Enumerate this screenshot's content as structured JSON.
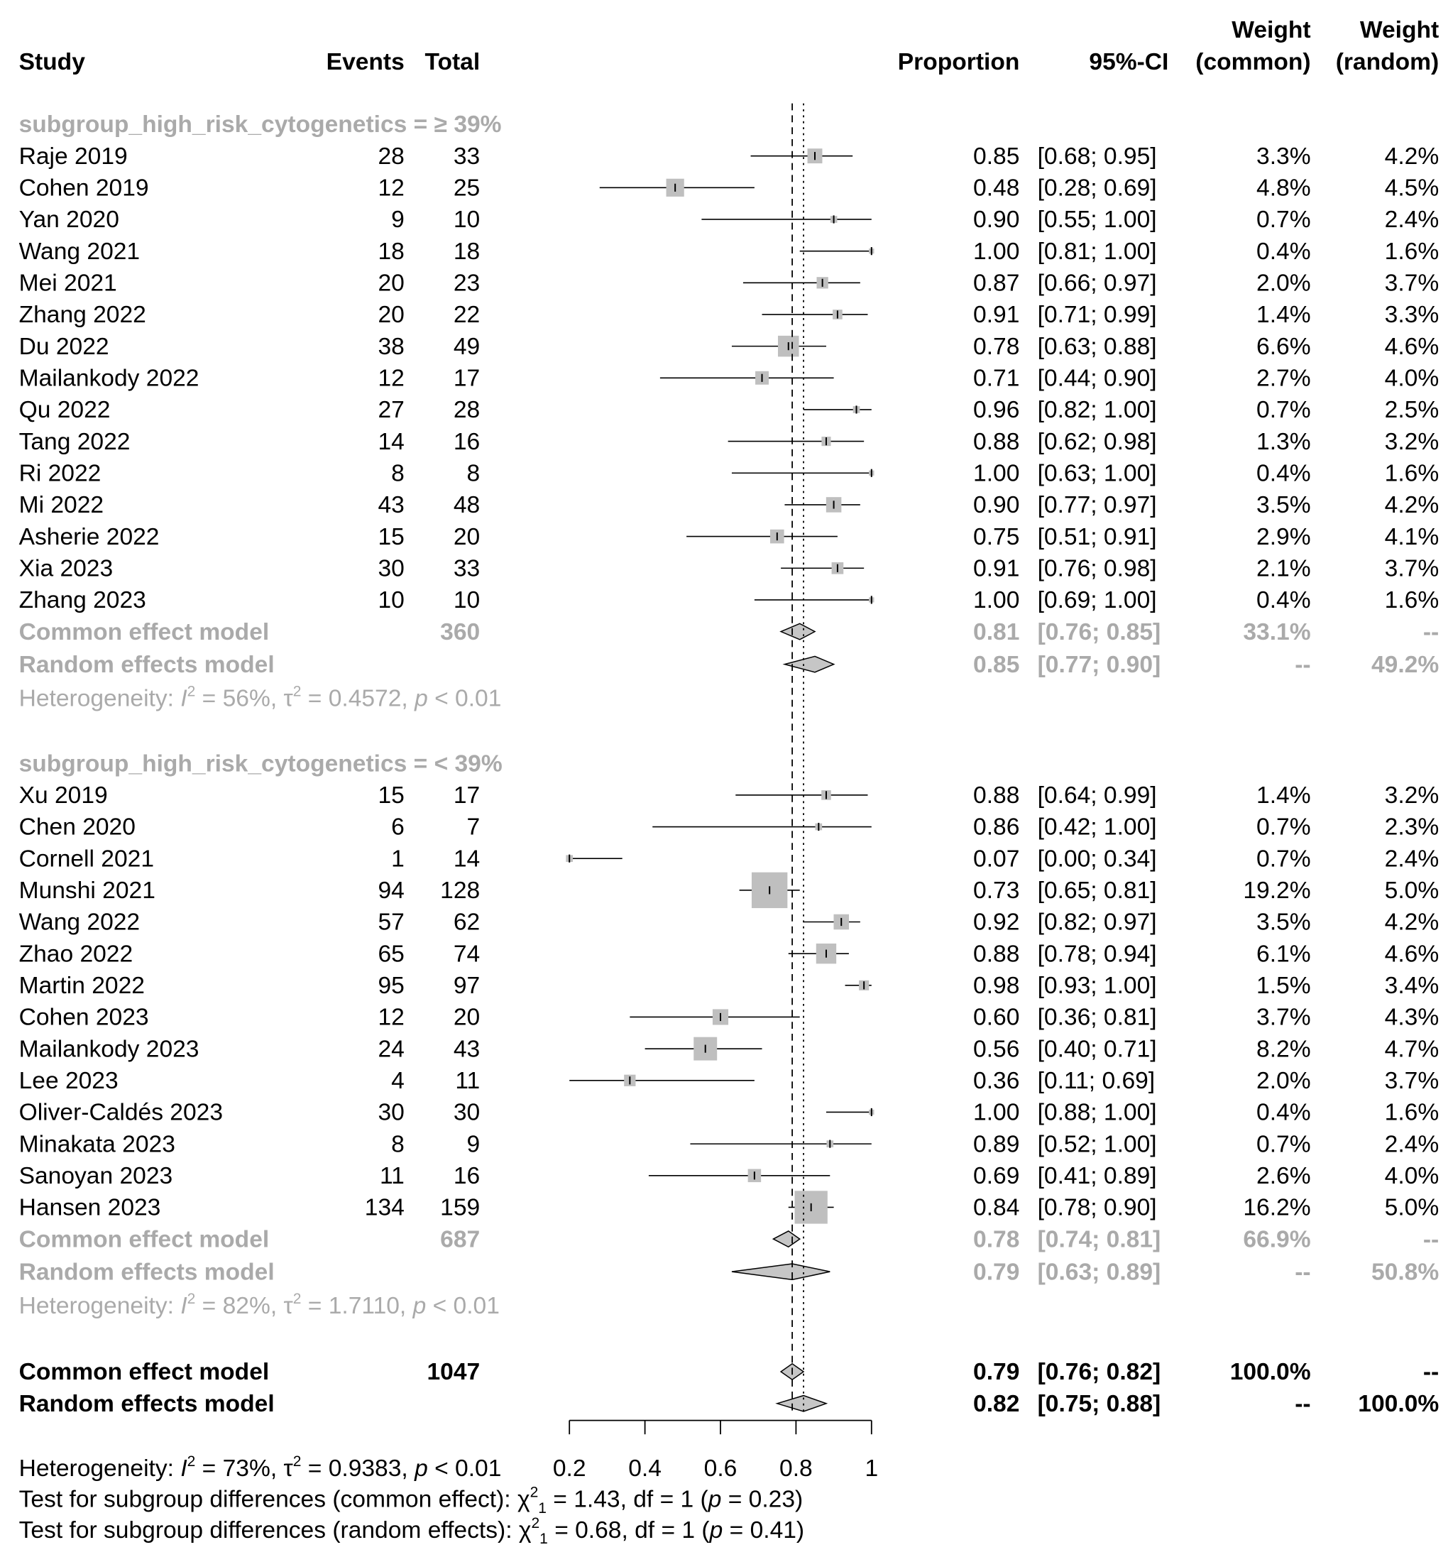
{
  "headers": {
    "study": "Study",
    "events": "Events",
    "total": "Total",
    "proportion": "Proportion",
    "ci": "95%-CI",
    "weight_common": [
      "Weight",
      "(common)"
    ],
    "weight_random": [
      "Weight",
      "(random)"
    ]
  },
  "colors": {
    "text": "#000000",
    "gray_text": "#aaaaaa",
    "box": "#bfbfbf",
    "diamond": "#c6c6c6",
    "line": "#000000"
  },
  "chart_data": {
    "type": "forest",
    "xlabel": "",
    "xlim": [
      0.2,
      1
    ],
    "ticks": [
      0.2,
      0.4,
      0.6,
      0.8,
      1
    ],
    "tick_labels": [
      "0.2",
      "0.4",
      "0.6",
      "0.8",
      "1"
    ],
    "reference_lines": [
      {
        "name": "common-effect-line",
        "value": 0.79,
        "style": "dashed"
      },
      {
        "name": "random-effects-line",
        "value": 0.82,
        "style": "dotted"
      }
    ],
    "subgroups": [
      {
        "label": "subgroup_high_risk_cytogenetics = ≥ 39%",
        "studies": [
          {
            "study": "Raje 2019",
            "events": "28",
            "total": "33",
            "prop": 0.85,
            "lo": 0.68,
            "hi": 0.95,
            "prop_text": "0.85",
            "ci_text": "[0.68; 0.95]",
            "w_common": "3.3%",
            "w_random": "4.2%",
            "wc": 3.3
          },
          {
            "study": "Cohen 2019",
            "events": "12",
            "total": "25",
            "prop": 0.48,
            "lo": 0.28,
            "hi": 0.69,
            "prop_text": "0.48",
            "ci_text": "[0.28; 0.69]",
            "w_common": "4.8%",
            "w_random": "4.5%",
            "wc": 4.8
          },
          {
            "study": "Yan 2020",
            "events": "9",
            "total": "10",
            "prop": 0.9,
            "lo": 0.55,
            "hi": 1.0,
            "prop_text": "0.90",
            "ci_text": "[0.55; 1.00]",
            "w_common": "0.7%",
            "w_random": "2.4%",
            "wc": 0.7
          },
          {
            "study": "Wang 2021",
            "events": "18",
            "total": "18",
            "prop": 1.0,
            "lo": 0.81,
            "hi": 1.0,
            "prop_text": "1.00",
            "ci_text": "[0.81; 1.00]",
            "w_common": "0.4%",
            "w_random": "1.6%",
            "wc": 0.4
          },
          {
            "study": "Mei 2021",
            "events": "20",
            "total": "23",
            "prop": 0.87,
            "lo": 0.66,
            "hi": 0.97,
            "prop_text": "0.87",
            "ci_text": "[0.66; 0.97]",
            "w_common": "2.0%",
            "w_random": "3.7%",
            "wc": 2.0
          },
          {
            "study": "Zhang 2022",
            "events": "20",
            "total": "22",
            "prop": 0.91,
            "lo": 0.71,
            "hi": 0.99,
            "prop_text": "0.91",
            "ci_text": "[0.71; 0.99]",
            "w_common": "1.4%",
            "w_random": "3.3%",
            "wc": 1.4
          },
          {
            "study": "Du 2022",
            "events": "38",
            "total": "49",
            "prop": 0.78,
            "lo": 0.63,
            "hi": 0.88,
            "prop_text": "0.78",
            "ci_text": "[0.63; 0.88]",
            "w_common": "6.6%",
            "w_random": "4.6%",
            "wc": 6.6
          },
          {
            "study": "Mailankody 2022",
            "events": "12",
            "total": "17",
            "prop": 0.71,
            "lo": 0.44,
            "hi": 0.9,
            "prop_text": "0.71",
            "ci_text": "[0.44; 0.90]",
            "w_common": "2.7%",
            "w_random": "4.0%",
            "wc": 2.7
          },
          {
            "study": "Qu 2022",
            "events": "27",
            "total": "28",
            "prop": 0.96,
            "lo": 0.82,
            "hi": 1.0,
            "prop_text": "0.96",
            "ci_text": "[0.82; 1.00]",
            "w_common": "0.7%",
            "w_random": "2.5%",
            "wc": 0.7
          },
          {
            "study": "Tang 2022",
            "events": "14",
            "total": "16",
            "prop": 0.88,
            "lo": 0.62,
            "hi": 0.98,
            "prop_text": "0.88",
            "ci_text": "[0.62; 0.98]",
            "w_common": "1.3%",
            "w_random": "3.2%",
            "wc": 1.3
          },
          {
            "study": "Ri 2022",
            "events": "8",
            "total": "8",
            "prop": 1.0,
            "lo": 0.63,
            "hi": 1.0,
            "prop_text": "1.00",
            "ci_text": "[0.63; 1.00]",
            "w_common": "0.4%",
            "w_random": "1.6%",
            "wc": 0.4
          },
          {
            "study": "Mi 2022",
            "events": "43",
            "total": "48",
            "prop": 0.9,
            "lo": 0.77,
            "hi": 0.97,
            "prop_text": "0.90",
            "ci_text": "[0.77; 0.97]",
            "w_common": "3.5%",
            "w_random": "4.2%",
            "wc": 3.5
          },
          {
            "study": "Asherie 2022",
            "events": "15",
            "total": "20",
            "prop": 0.75,
            "lo": 0.51,
            "hi": 0.91,
            "prop_text": "0.75",
            "ci_text": "[0.51; 0.91]",
            "w_common": "2.9%",
            "w_random": "4.1%",
            "wc": 2.9
          },
          {
            "study": "Xia 2023",
            "events": "30",
            "total": "33",
            "prop": 0.91,
            "lo": 0.76,
            "hi": 0.98,
            "prop_text": "0.91",
            "ci_text": "[0.76; 0.98]",
            "w_common": "2.1%",
            "w_random": "3.7%",
            "wc": 2.1
          },
          {
            "study": "Zhang 2023",
            "events": "10",
            "total": "10",
            "prop": 1.0,
            "lo": 0.69,
            "hi": 1.0,
            "prop_text": "1.00",
            "ci_text": "[0.69; 1.00]",
            "w_common": "0.4%",
            "w_random": "1.6%",
            "wc": 0.4
          }
        ],
        "common": {
          "label": "Common effect model",
          "total": "360",
          "prop": 0.81,
          "lo": 0.76,
          "hi": 0.85,
          "prop_text": "0.81",
          "ci_text": "[0.76; 0.85]",
          "w_common": "33.1%",
          "w_random": "--"
        },
        "random": {
          "label": "Random effects model",
          "prop": 0.85,
          "lo": 0.77,
          "hi": 0.9,
          "prop_text": "0.85",
          "ci_text": "[0.77; 0.90]",
          "w_common": "--",
          "w_random": "49.2%"
        },
        "heterogeneity": {
          "prefix": "Heterogeneity: ",
          "I2": "56%",
          "tau2": "0.4572",
          "p": "< 0.01"
        }
      },
      {
        "label": "subgroup_high_risk_cytogenetics = < 39%",
        "studies": [
          {
            "study": "Xu 2019",
            "events": "15",
            "total": "17",
            "prop": 0.88,
            "lo": 0.64,
            "hi": 0.99,
            "prop_text": "0.88",
            "ci_text": "[0.64; 0.99]",
            "w_common": "1.4%",
            "w_random": "3.2%",
            "wc": 1.4
          },
          {
            "study": "Chen 2020",
            "events": "6",
            "total": "7",
            "prop": 0.86,
            "lo": 0.42,
            "hi": 1.0,
            "prop_text": "0.86",
            "ci_text": "[0.42; 1.00]",
            "w_common": "0.7%",
            "w_random": "2.3%",
            "wc": 0.7
          },
          {
            "study": "Cornell 2021",
            "events": "1",
            "total": "14",
            "prop": 0.07,
            "lo": 0.0,
            "hi": 0.34,
            "prop_text": "0.07",
            "ci_text": "[0.00; 0.34]",
            "w_common": "0.7%",
            "w_random": "2.4%",
            "wc": 0.7
          },
          {
            "study": "Munshi 2021",
            "events": "94",
            "total": "128",
            "prop": 0.73,
            "lo": 0.65,
            "hi": 0.81,
            "prop_text": "0.73",
            "ci_text": "[0.65; 0.81]",
            "w_common": "19.2%",
            "w_random": "5.0%",
            "wc": 19.2
          },
          {
            "study": "Wang 2022",
            "events": "57",
            "total": "62",
            "prop": 0.92,
            "lo": 0.82,
            "hi": 0.97,
            "prop_text": "0.92",
            "ci_text": "[0.82; 0.97]",
            "w_common": "3.5%",
            "w_random": "4.2%",
            "wc": 3.5
          },
          {
            "study": "Zhao 2022",
            "events": "65",
            "total": "74",
            "prop": 0.88,
            "lo": 0.78,
            "hi": 0.94,
            "prop_text": "0.88",
            "ci_text": "[0.78; 0.94]",
            "w_common": "6.1%",
            "w_random": "4.6%",
            "wc": 6.1
          },
          {
            "study": "Martin 2022",
            "events": "95",
            "total": "97",
            "prop": 0.98,
            "lo": 0.93,
            "hi": 1.0,
            "prop_text": "0.98",
            "ci_text": "[0.93; 1.00]",
            "w_common": "1.5%",
            "w_random": "3.4%",
            "wc": 1.5
          },
          {
            "study": "Cohen 2023",
            "events": "12",
            "total": "20",
            "prop": 0.6,
            "lo": 0.36,
            "hi": 0.81,
            "prop_text": "0.60",
            "ci_text": "[0.36; 0.81]",
            "w_common": "3.7%",
            "w_random": "4.3%",
            "wc": 3.7
          },
          {
            "study": "Mailankody 2023",
            "events": "24",
            "total": "43",
            "prop": 0.56,
            "lo": 0.4,
            "hi": 0.71,
            "prop_text": "0.56",
            "ci_text": "[0.40; 0.71]",
            "w_common": "8.2%",
            "w_random": "4.7%",
            "wc": 8.2
          },
          {
            "study": "Lee 2023",
            "events": "4",
            "total": "11",
            "prop": 0.36,
            "lo": 0.11,
            "hi": 0.69,
            "prop_text": "0.36",
            "ci_text": "[0.11; 0.69]",
            "w_common": "2.0%",
            "w_random": "3.7%",
            "wc": 2.0
          },
          {
            "study": "Oliver-Caldés 2023",
            "events": "30",
            "total": "30",
            "prop": 1.0,
            "lo": 0.88,
            "hi": 1.0,
            "prop_text": "1.00",
            "ci_text": "[0.88; 1.00]",
            "w_common": "0.4%",
            "w_random": "1.6%",
            "wc": 0.4
          },
          {
            "study": "Minakata 2023",
            "events": "8",
            "total": "9",
            "prop": 0.89,
            "lo": 0.52,
            "hi": 1.0,
            "prop_text": "0.89",
            "ci_text": "[0.52; 1.00]",
            "w_common": "0.7%",
            "w_random": "2.4%",
            "wc": 0.7
          },
          {
            "study": "Sanoyan 2023",
            "events": "11",
            "total": "16",
            "prop": 0.69,
            "lo": 0.41,
            "hi": 0.89,
            "prop_text": "0.69",
            "ci_text": "[0.41; 0.89]",
            "w_common": "2.6%",
            "w_random": "4.0%",
            "wc": 2.6
          },
          {
            "study": "Hansen 2023",
            "events": "134",
            "total": "159",
            "prop": 0.84,
            "lo": 0.78,
            "hi": 0.9,
            "prop_text": "0.84",
            "ci_text": "[0.78; 0.90]",
            "w_common": "16.2%",
            "w_random": "5.0%",
            "wc": 16.2
          }
        ],
        "common": {
          "label": "Common effect model",
          "total": "687",
          "prop": 0.78,
          "lo": 0.74,
          "hi": 0.81,
          "prop_text": "0.78",
          "ci_text": "[0.74; 0.81]",
          "w_common": "66.9%",
          "w_random": "--"
        },
        "random": {
          "label": "Random effects model",
          "prop": 0.79,
          "lo": 0.63,
          "hi": 0.89,
          "prop_text": "0.79",
          "ci_text": "[0.63; 0.89]",
          "w_common": "--",
          "w_random": "50.8%"
        },
        "heterogeneity": {
          "prefix": "Heterogeneity: ",
          "I2": "82%",
          "tau2": "1.7110",
          "p": "< 0.01"
        }
      }
    ],
    "overall": {
      "common": {
        "label": "Common effect model",
        "total": "1047",
        "prop": 0.79,
        "lo": 0.76,
        "hi": 0.82,
        "prop_text": "0.79",
        "ci_text": "[0.76; 0.82]",
        "w_common": "100.0%",
        "w_random": "--"
      },
      "random": {
        "label": "Random effects model",
        "prop": 0.82,
        "lo": 0.75,
        "hi": 0.88,
        "prop_text": "0.82",
        "ci_text": "[0.75; 0.88]",
        "w_common": "--",
        "w_random": "100.0%"
      },
      "heterogeneity": {
        "prefix": "Heterogeneity: ",
        "I2": "73%",
        "tau2": "0.9383",
        "p": "< 0.01"
      }
    },
    "subgroup_tests": [
      {
        "prefix": "Test for subgroup differences (common effect): ",
        "chi2": "1.43",
        "df": "1",
        "p": "0.23"
      },
      {
        "prefix": "Test for subgroup differences (random effects): ",
        "chi2": "0.68",
        "df": "1",
        "p": "0.41"
      }
    ]
  }
}
